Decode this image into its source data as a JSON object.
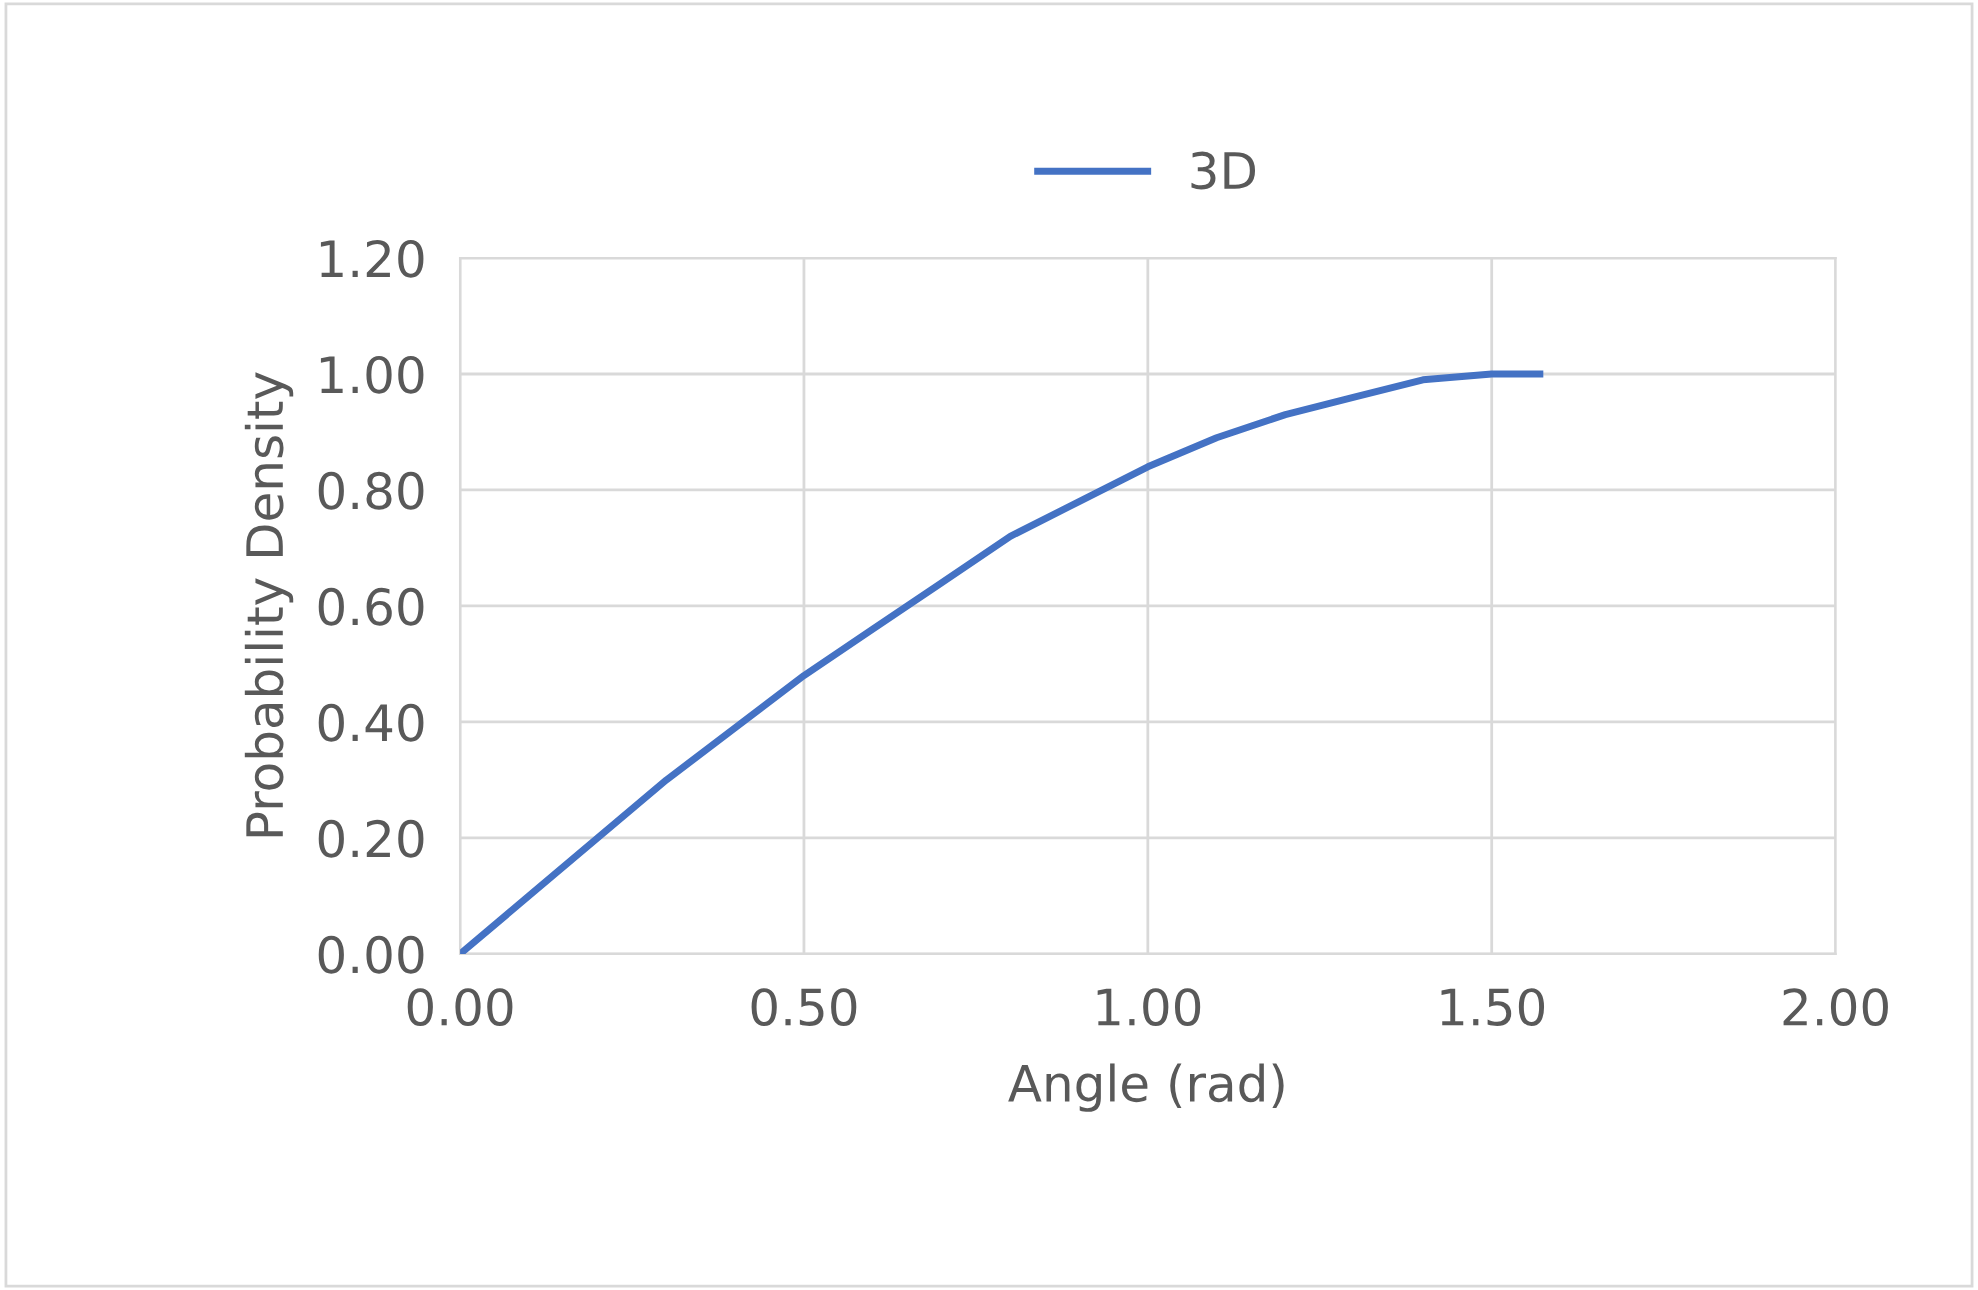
{
  "chart_data": {
    "type": "line",
    "xlabel": "Angle (rad)",
    "ylabel": "Probability Density",
    "series": [
      {
        "name": "3D",
        "color": "#4472c4",
        "x": [
          0,
          0.1,
          0.2,
          0.3,
          0.4,
          0.5,
          0.6,
          0.7,
          0.8,
          0.9,
          1.0,
          1.1,
          1.2,
          1.3,
          1.4,
          1.5,
          1.57
        ],
        "values": [
          0,
          0.1,
          0.2,
          0.3,
          0.39,
          0.48,
          0.56,
          0.64,
          0.72,
          0.78,
          0.84,
          0.89,
          0.93,
          0.96,
          0.99,
          1.0,
          1.0
        ]
      }
    ],
    "xlim": [
      0,
      2
    ],
    "xticks": [
      {
        "value": 0,
        "label": "0.00"
      },
      {
        "value": 0.5,
        "label": "0.50"
      },
      {
        "value": 1,
        "label": "1.00"
      },
      {
        "value": 1.5,
        "label": "1.50"
      },
      {
        "value": 2,
        "label": "2.00"
      }
    ],
    "ylim": [
      0,
      1.2
    ],
    "yticks": [
      {
        "value": 0,
        "label": "0.00"
      },
      {
        "value": 0.2,
        "label": "0.20"
      },
      {
        "value": 0.4,
        "label": "0.40"
      },
      {
        "value": 0.6,
        "label": "0.60"
      },
      {
        "value": 0.8,
        "label": "0.80"
      },
      {
        "value": 1,
        "label": "1.00"
      },
      {
        "value": 1.2,
        "label": "1.20"
      }
    ],
    "grid": true,
    "legend": "top",
    "marker": "none",
    "line_style": "solid"
  }
}
